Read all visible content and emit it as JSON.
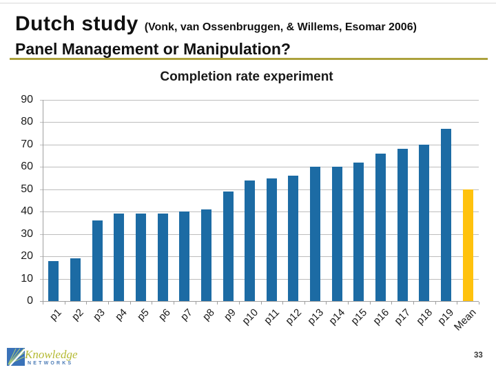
{
  "slide": {
    "title_main": "Dutch study",
    "title_citation": "(Vonk, van Ossenbruggen, & Willems, Esomar 2006)",
    "subtitle": "Panel Management or Manipulation?",
    "page_number": "33",
    "accent_line_color": "#ACA13C"
  },
  "logo": {
    "line1": "Knowledge",
    "line2": "NETWORKS",
    "knowledge_color": "#B5BA33",
    "networks_color": "#4A7AB5",
    "square_color": "#3A72B8",
    "rays_color": "#A9CA7A"
  },
  "chart_data": {
    "type": "bar",
    "title": "Completion rate experiment",
    "categories": [
      "p1",
      "p2",
      "p3",
      "p4",
      "p5",
      "p6",
      "p7",
      "p8",
      "p9",
      "p10",
      "p11",
      "p12",
      "p13",
      "p14",
      "p15",
      "p16",
      "p17",
      "p18",
      "p19",
      "Mean"
    ],
    "values": [
      18,
      19,
      36,
      39,
      39,
      39,
      40,
      41,
      49,
      54,
      55,
      56,
      60,
      60,
      62,
      66,
      68,
      70,
      77,
      50
    ],
    "title_label": "Completion rate experiment",
    "xlabel": "",
    "ylabel": "",
    "ylim": [
      0,
      90
    ],
    "yticks": [
      0,
      10,
      20,
      30,
      40,
      50,
      60,
      70,
      80,
      90
    ],
    "grid": true,
    "legend": "none",
    "bar_color": "#1C6BA4",
    "highlight_color": "#FFC20D",
    "highlight_index": 19,
    "gridline_color": "#BCBCBC"
  }
}
